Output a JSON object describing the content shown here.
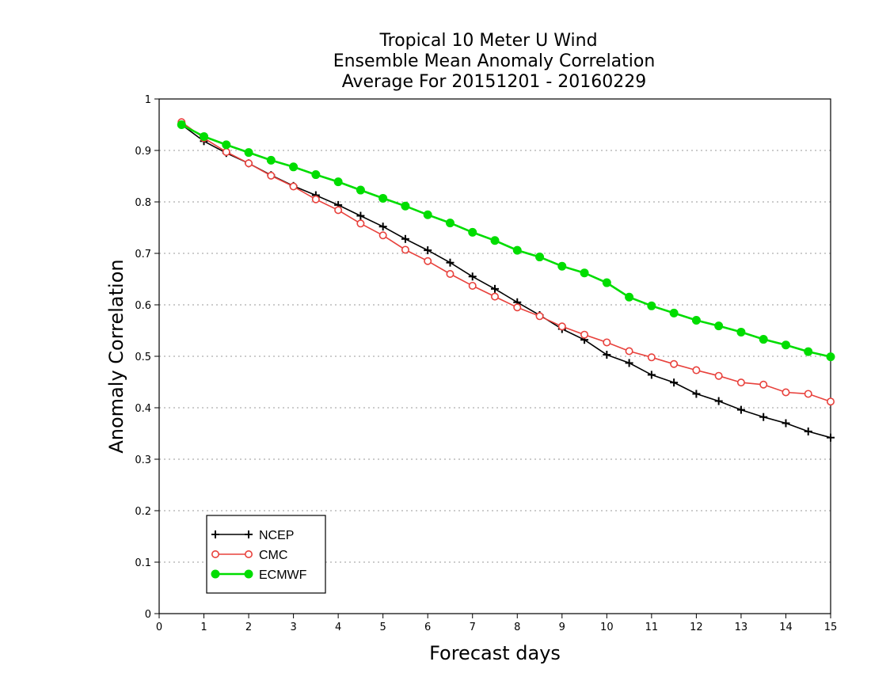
{
  "title_lines": [
    "Tropical 10 Meter U Wind",
    "Ensemble Mean Anomaly Correlation",
    "Average For 20151201 - 20160229"
  ],
  "chart_data": {
    "type": "line",
    "title": "Tropical 10 Meter U Wind / Ensemble Mean Anomaly Correlation / Average For 20151201 - 20160229",
    "xlabel": "Forecast days",
    "ylabel": "Anomaly Correlation",
    "xlim": [
      0,
      15
    ],
    "ylim": [
      0,
      1
    ],
    "x_ticks": [
      "0",
      "1",
      "2",
      "3",
      "4",
      "5",
      "6",
      "7",
      "8",
      "9",
      "10",
      "11",
      "12",
      "13",
      "14",
      "15"
    ],
    "y_ticks": [
      "0",
      "0.1",
      "0.2",
      "0.3",
      "0.4",
      "0.5",
      "0.6",
      "0.7",
      "0.8",
      "0.9",
      "1"
    ],
    "grid": "horizontal dotted",
    "legend_position": "bottom-left",
    "x": [
      0.5,
      1,
      1.5,
      2,
      2.5,
      3,
      3.5,
      4,
      4.5,
      5,
      5.5,
      6,
      6.5,
      7,
      7.5,
      8,
      8.5,
      9,
      9.5,
      10,
      10.5,
      11,
      11.5,
      12,
      12.5,
      13,
      13.5,
      14,
      14.5,
      15
    ],
    "series": [
      {
        "name": "NCEP",
        "color": "#000000",
        "marker": "plus",
        "values": [
          0.95,
          0.918,
          0.895,
          0.875,
          0.852,
          0.831,
          0.813,
          0.794,
          0.773,
          0.752,
          0.728,
          0.706,
          0.682,
          0.655,
          0.631,
          0.605,
          0.58,
          0.553,
          0.532,
          0.503,
          0.487,
          0.464,
          0.449,
          0.427,
          0.413,
          0.396,
          0.382,
          0.37,
          0.354,
          0.342
        ]
      },
      {
        "name": "CMC",
        "color": "#e8413c",
        "marker": "open-circle",
        "values": [
          0.955,
          0.924,
          0.897,
          0.875,
          0.851,
          0.83,
          0.805,
          0.784,
          0.758,
          0.735,
          0.707,
          0.685,
          0.66,
          0.637,
          0.616,
          0.595,
          0.578,
          0.558,
          0.542,
          0.527,
          0.51,
          0.498,
          0.485,
          0.473,
          0.462,
          0.449,
          0.445,
          0.43,
          0.427,
          0.412
        ]
      },
      {
        "name": "ECMWF",
        "color": "#00dd00",
        "marker": "filled-circle",
        "values": [
          0.95,
          0.927,
          0.911,
          0.896,
          0.881,
          0.868,
          0.853,
          0.839,
          0.823,
          0.807,
          0.792,
          0.775,
          0.759,
          0.741,
          0.725,
          0.706,
          0.693,
          0.675,
          0.662,
          0.643,
          0.615,
          0.598,
          0.584,
          0.57,
          0.559,
          0.547,
          0.533,
          0.522,
          0.509,
          0.499
        ]
      }
    ]
  }
}
